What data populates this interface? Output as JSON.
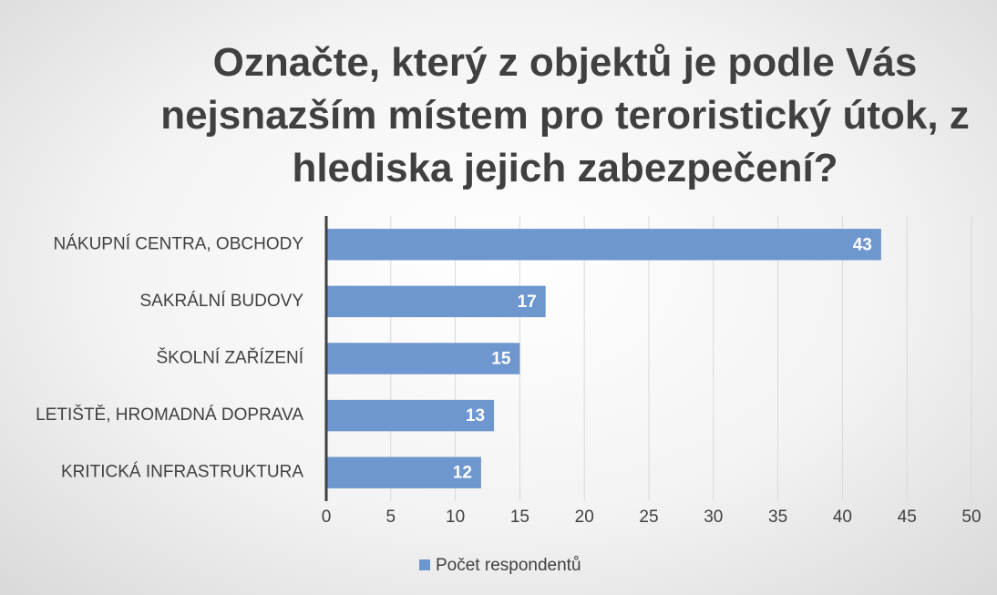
{
  "chart_data": {
    "type": "hbar",
    "title": "Označte, který z objektů je podle Vás nejsnazším místem pro teroristický útok, z hlediska jejich zabezpečení?",
    "categories": [
      "NÁKUPNÍ CENTRA, OBCHODY",
      "SAKRÁLNÍ BUDOVY",
      "ŠKOLNÍ ZAŘÍZENÍ",
      "LETIŠTĚ, HROMADNÁ DOPRAVA",
      "KRITICKÁ INFRASTRUKTURA"
    ],
    "series": [
      {
        "name": "Počet respondentů",
        "color": "#6f97cf",
        "values": [
          43,
          17,
          15,
          13,
          12
        ]
      }
    ],
    "xlim": [
      0,
      50
    ],
    "xticks": [
      0,
      5,
      10,
      15,
      20,
      25,
      30,
      35,
      40,
      45,
      50
    ],
    "grid": true,
    "legend": "bottom"
  }
}
